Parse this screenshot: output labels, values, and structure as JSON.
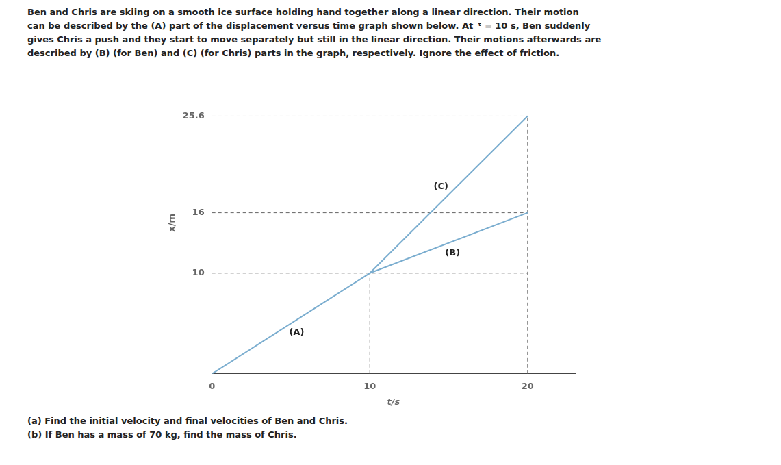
{
  "chart_data": {
    "type": "line",
    "text_above": [
      "Ben and Chris are skiing on a smooth ice surface holding hand together along a linear direction. Their motion",
      "can be described by the (A) part of the displacement versus time graph shown below. At  ᵗ = 10 s, Ben suddenly",
      "gives Chris a push and they start to move separately but still in the linear direction. Their motions afterwards are",
      "described by (B) (for Ben) and (C) (for Chris) parts in the graph, respectively. Ignore the effect of friction."
    ],
    "text_below": [
      "(a) Find the initial velocity and final velocities of Ben and Chris.",
      "(b) If Ben has a mass of 70 kg, find the mass of Chris."
    ],
    "x_label": "t/s",
    "y_label": "x/m",
    "series": [
      {
        "name": "(A)",
        "color": "#7aadcf",
        "x": [
          0,
          10
        ],
        "values": [
          0,
          10
        ]
      },
      {
        "name": "(B)",
        "color": "#7aadcf",
        "x": [
          10,
          20
        ],
        "values": [
          10,
          16
        ]
      },
      {
        "name": "(C)",
        "color": "#7aadcf",
        "x": [
          10,
          20
        ],
        "values": [
          10,
          25.6
        ]
      }
    ],
    "reference_lines": [
      {
        "color": "#666666",
        "line_style": "dashed",
        "x": [
          0,
          20
        ],
        "values": [
          10,
          10
        ]
      },
      {
        "color": "#666666",
        "line_style": "dashed",
        "x": [
          0,
          20
        ],
        "values": [
          16,
          16
        ]
      },
      {
        "color": "#666666",
        "line_style": "dashed",
        "x": [
          0,
          20
        ],
        "values": [
          25.6,
          25.6
        ]
      },
      {
        "color": "#666666",
        "line_style": "dashed",
        "x": [
          10,
          10
        ],
        "values": [
          0,
          10
        ]
      },
      {
        "color": "#666666",
        "line_style": "dashed",
        "x": [
          20,
          20
        ],
        "values": [
          0,
          25.6
        ]
      }
    ],
    "xlim": [
      0,
      23
    ],
    "ylim": [
      0,
      30
    ],
    "xticks": [
      0,
      10,
      20
    ],
    "yticks": [
      10,
      16,
      25.6
    ],
    "grid": false
  }
}
